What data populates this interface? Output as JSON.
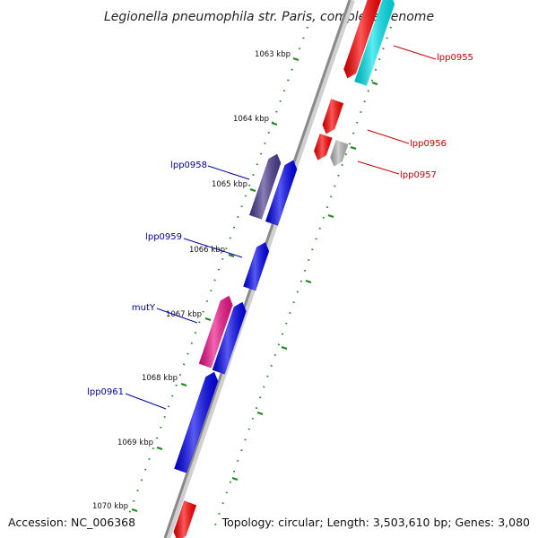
{
  "title": "Legionella pneumophila str. Paris, complete genome",
  "footer": {
    "accession": "Accession: NC_006368",
    "summary": "Topology: circular; Length: 3,503,610 bp; Genes: 3,080"
  },
  "colors": {
    "reverse_label": "#0000aa",
    "forward_label": "#cc0000",
    "tick_dots": "#1a8a1a",
    "backbone": "#909090"
  },
  "ticks": [
    {
      "label": "1063 kbp"
    },
    {
      "label": "1064 kbp"
    },
    {
      "label": "1065 kbp"
    },
    {
      "label": "1066 kbp"
    },
    {
      "label": "1067 kbp"
    },
    {
      "label": "1068 kbp"
    },
    {
      "label": "1069 kbp"
    },
    {
      "label": "1070 kbp"
    }
  ],
  "genes": [
    {
      "label": "lpp0955",
      "strand": "forward",
      "color": "#ff0000"
    },
    {
      "label": "",
      "strand": "forward",
      "color": "#00e5ee"
    },
    {
      "label": "lpp0956",
      "strand": "forward",
      "color": "#ff0000"
    },
    {
      "label": "",
      "strand": "forward",
      "color": "#ff0000"
    },
    {
      "label": "lpp0957",
      "strand": "forward",
      "color": "#b8b8b8"
    },
    {
      "label": "lpp0958",
      "strand": "reverse",
      "color": "#4b3b8f"
    },
    {
      "label": "",
      "strand": "reverse",
      "color": "#0000ee"
    },
    {
      "label": "lpp0959",
      "strand": "reverse",
      "color": "#0000ee"
    },
    {
      "label": "mutY",
      "strand": "reverse",
      "color": "#ee1188"
    },
    {
      "label": "",
      "strand": "reverse",
      "color": "#0000ee"
    },
    {
      "label": "lpp0961",
      "strand": "reverse",
      "color": "#0000ee"
    },
    {
      "label": "",
      "strand": "forward",
      "color": "#ff0000"
    }
  ]
}
